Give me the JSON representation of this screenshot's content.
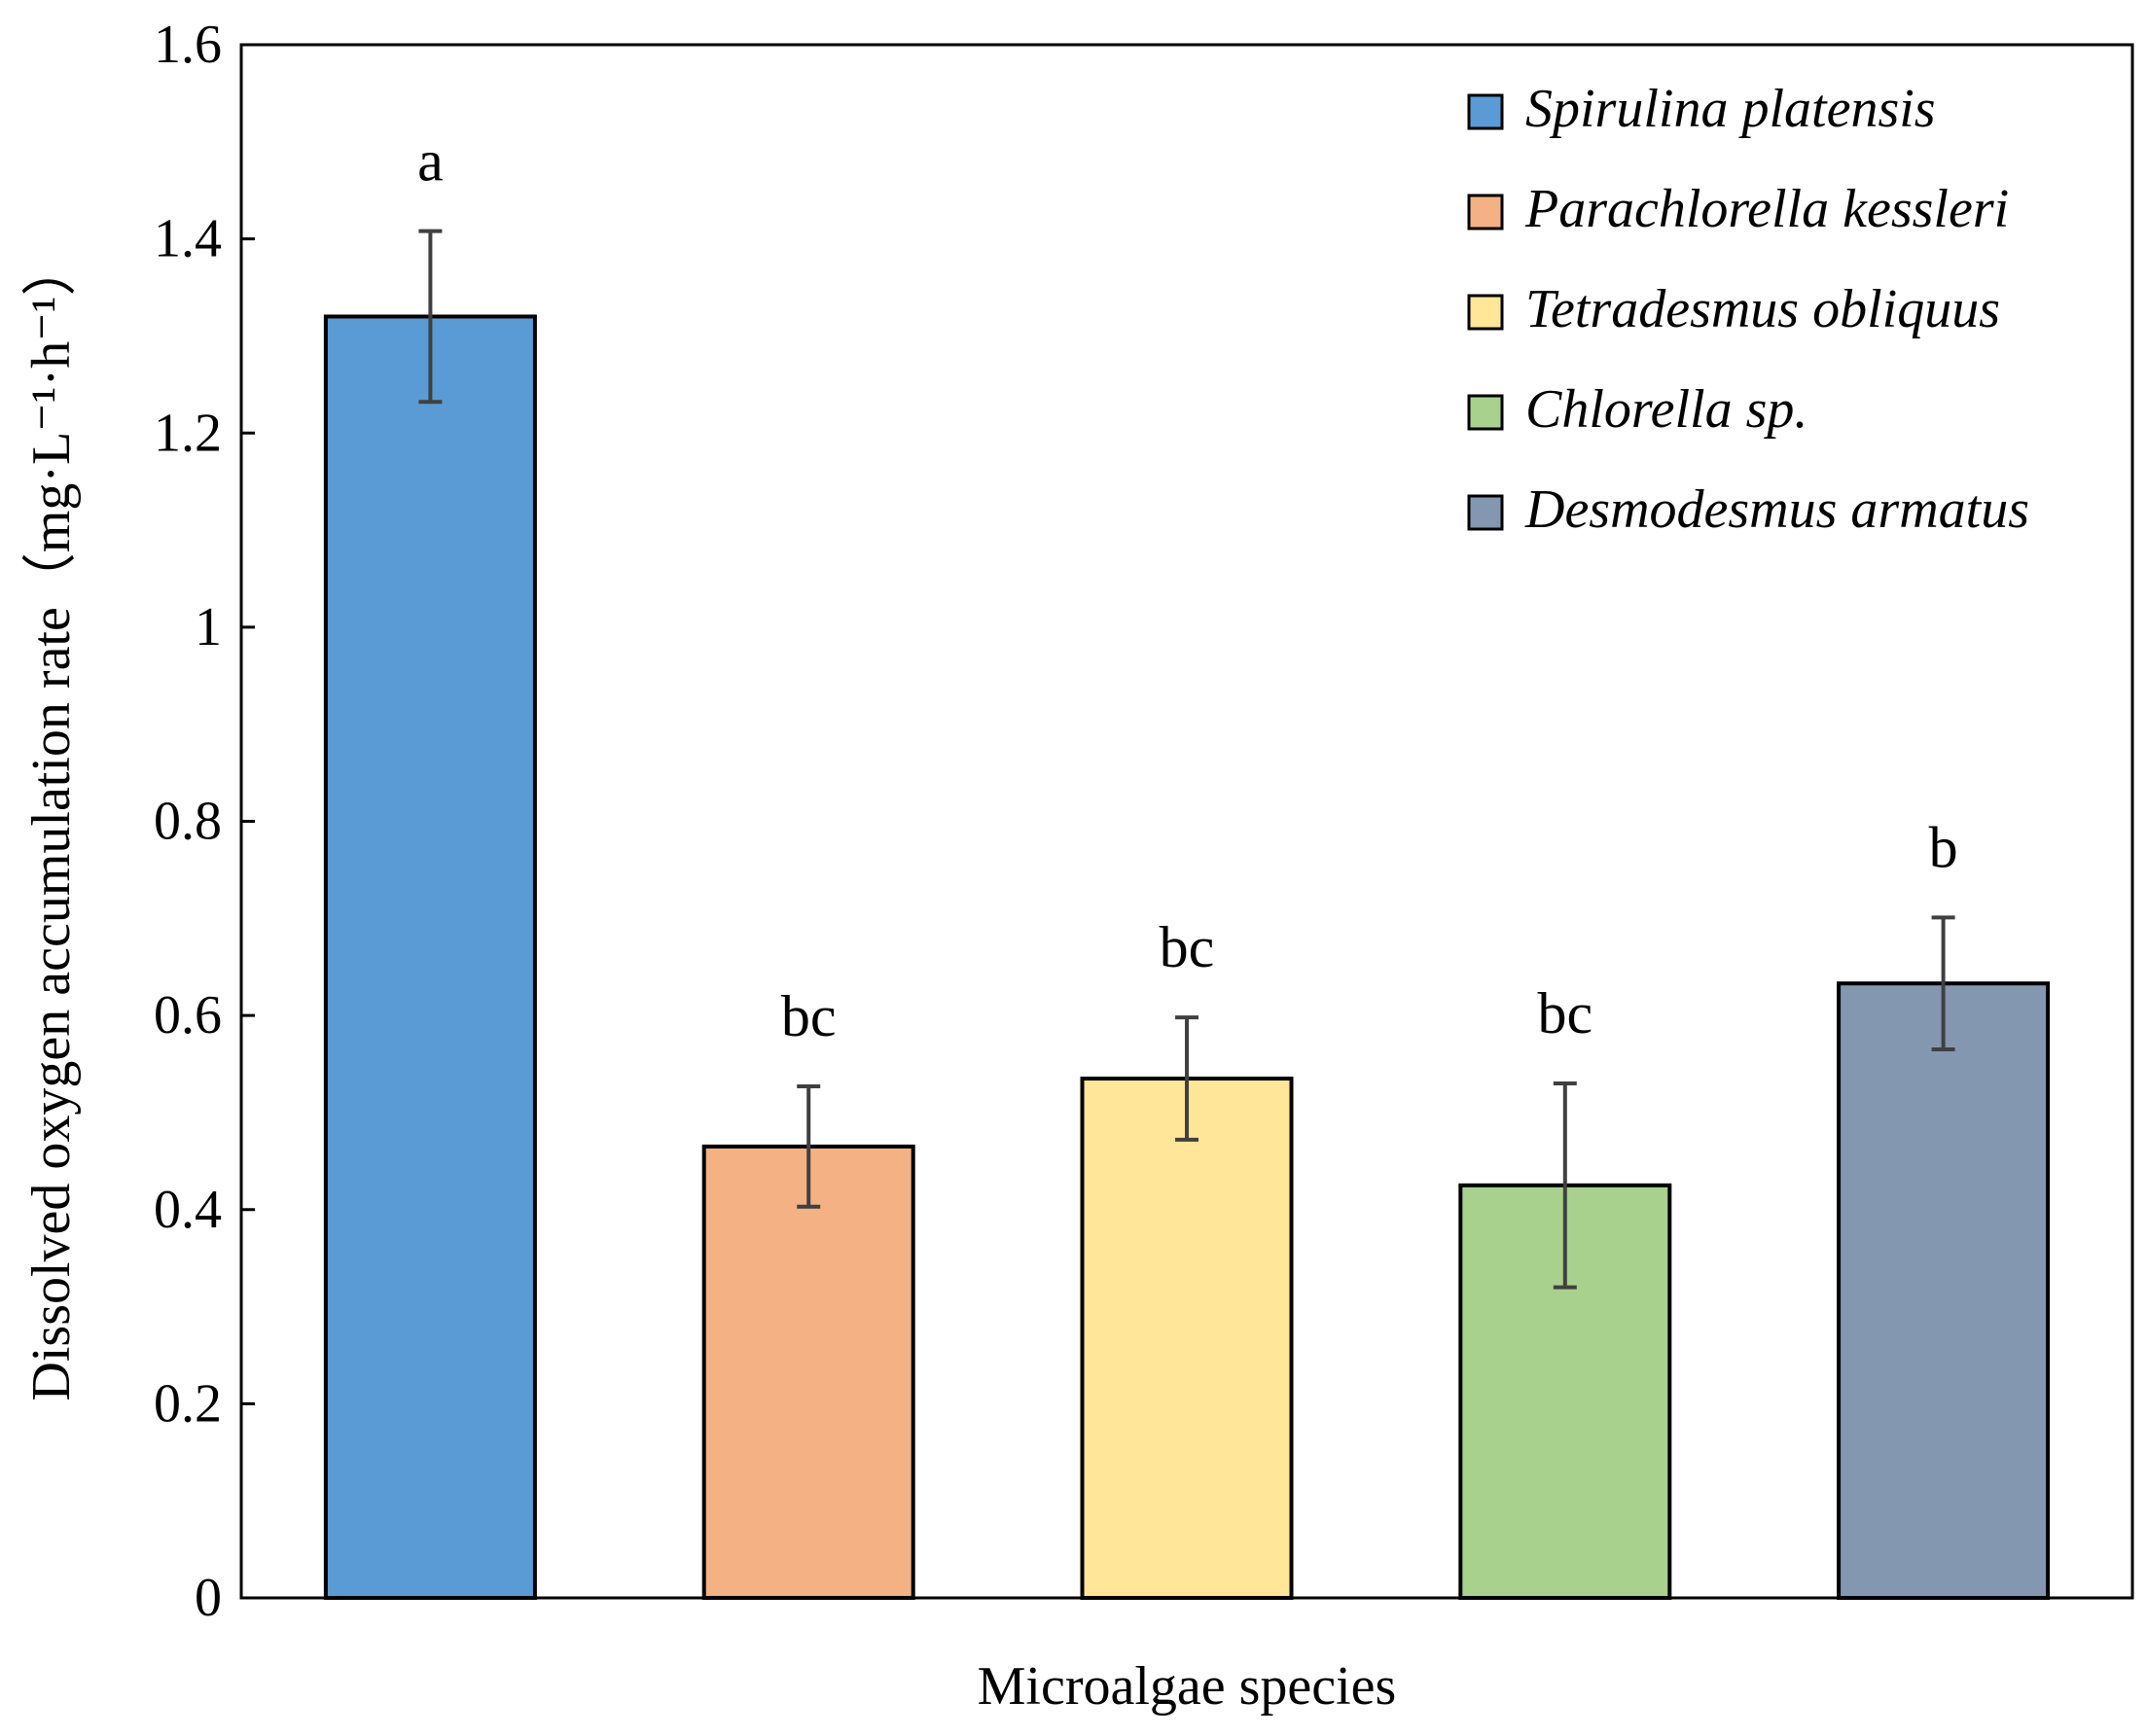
{
  "chart_data": {
    "type": "bar",
    "title": "",
    "xlabel": "Microalgae species",
    "ylabel": "Dissolved oxygen accumulation rate（mg·L⁻¹·h⁻¹）",
    "ylim": [
      0,
      1.6
    ],
    "yticks": [
      "0",
      "0.2",
      "0.4",
      "0.6",
      "0.8",
      "1",
      "1.2",
      "1.4",
      "1.6"
    ],
    "ytick_values": [
      0,
      0.2,
      0.4,
      0.6,
      0.8,
      1.0,
      1.2,
      1.4,
      1.6
    ],
    "grid": false,
    "legend_position": "top-right",
    "categories": [
      "Spirulina platensis",
      "Parachlorella kessleri",
      "Tetradesmus obliquus",
      "Chlorella sp.",
      "Desmodesmus armatus"
    ],
    "values": [
      1.32,
      0.465,
      0.535,
      0.425,
      0.633
    ],
    "errors": [
      0.088,
      0.062,
      0.063,
      0.105,
      0.068
    ],
    "significance_labels": [
      "a",
      "bc",
      "bc",
      "bc",
      "b"
    ],
    "colors": [
      "#5b9bd5",
      "#f4b183",
      "#ffe699",
      "#a9d18e",
      "#8497b0"
    ],
    "error_bar_color": "#404040",
    "outline_color": "#000000"
  }
}
